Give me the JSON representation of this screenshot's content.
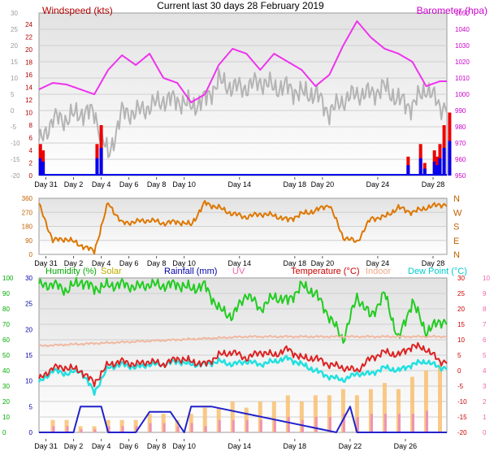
{
  "title": "Current last 30 days 28 February 2019",
  "chart_data": [
    {
      "type": "line",
      "panel": "wind_baro",
      "legend": {
        "windspeed": "Windspeed (kts)",
        "barometer": "Barometer (hpa)"
      },
      "left_axis": {
        "ticks": [
          "30",
          "25",
          "20",
          "15",
          "10",
          "5",
          "0",
          "-5",
          "-10",
          "-15",
          "-20"
        ],
        "range": [
          -20,
          30
        ]
      },
      "wind_axis_overlay": {
        "ticks": [
          "24",
          "22",
          "20",
          "18",
          "16",
          "14",
          "12",
          "10",
          "8",
          "6",
          "4",
          "2",
          "0"
        ],
        "range": [
          0,
          24
        ]
      },
      "right_axis": {
        "ticks": [
          "1050",
          "1040",
          "1030",
          "1020",
          "1010",
          "1000",
          "990",
          "980",
          "970",
          "960",
          "950"
        ],
        "range": [
          950,
          1050
        ]
      },
      "x_labels": [
        "Day 31",
        "Day 2",
        "Day 4",
        "Day 6",
        "Day 8",
        "Day 10",
        "Day 14",
        "Day 18",
        "Day 20",
        "Day 24",
        "Day 28"
      ],
      "barometer": {
        "t": [
          0,
          1,
          2,
          3,
          4,
          5,
          6,
          7,
          8,
          9,
          10,
          11,
          12,
          13,
          14,
          15,
          16,
          17,
          18,
          19,
          20,
          21,
          22,
          23,
          24,
          25,
          26,
          27,
          28,
          29
        ],
        "hpa": [
          1003,
          1007,
          1006,
          1003,
          1000,
          1015,
          1024,
          1018,
          1025,
          1010,
          1007,
          995,
          1000,
          1018,
          1028,
          1025,
          1015,
          1025,
          1020,
          1015,
          1005,
          1012,
          1030,
          1045,
          1035,
          1028,
          1025,
          1020,
          1005,
          1008
        ]
      },
      "windspeed": {
        "t": [
          0,
          1,
          2,
          3,
          4,
          5,
          6,
          7,
          8,
          9,
          10,
          11,
          12,
          13,
          14,
          15,
          16,
          17,
          18,
          19,
          20,
          21,
          22,
          23,
          24,
          25,
          26,
          27,
          28,
          29
        ],
        "kts": [
          5,
          9,
          9,
          10,
          10,
          3,
          10,
          10,
          11,
          12,
          12,
          11,
          12,
          15,
          14,
          14,
          15,
          14,
          14,
          13,
          13,
          10,
          12,
          13,
          13,
          14,
          12,
          11,
          14,
          11
        ]
      },
      "gust_bars": {
        "t": [
          0.1,
          0.3,
          4.2,
          4.5,
          26.7,
          27.6,
          27.9,
          28.6,
          28.8,
          29.0,
          29.3,
          29.7
        ],
        "kts": [
          5,
          4,
          5,
          8,
          3,
          5,
          2,
          4,
          3,
          5,
          8,
          10
        ]
      }
    },
    {
      "type": "scatter",
      "panel": "wind_direction",
      "left_axis": {
        "ticks": [
          "360",
          "270",
          "180",
          "90",
          "0"
        ],
        "range": [
          0,
          360
        ]
      },
      "right_labels": [
        "N",
        "W",
        "S",
        "E",
        "N"
      ],
      "x_labels": [
        "Day 31",
        "Day 2",
        "Day 4",
        "Day 6",
        "Day 8",
        "Day 10",
        "Day 14",
        "Day 18",
        "Day 20",
        "Day 24",
        "Day 28"
      ],
      "direction": {
        "t": [
          0,
          1,
          2,
          3,
          4,
          5,
          6,
          7,
          8,
          9,
          10,
          11,
          12,
          13,
          14,
          15,
          16,
          17,
          18,
          19,
          20,
          21,
          22,
          23,
          24,
          25,
          26,
          27,
          28,
          29
        ],
        "deg": [
          320,
          90,
          100,
          60,
          20,
          330,
          200,
          210,
          220,
          200,
          210,
          190,
          330,
          300,
          260,
          240,
          260,
          250,
          220,
          260,
          280,
          320,
          110,
          80,
          230,
          240,
          300,
          270,
          300,
          320
        ]
      }
    },
    {
      "type": "line",
      "panel": "temp_hum_rain",
      "legend": {
        "humidity": "Humidity (%)",
        "solar": "Solar",
        "rainfall": "Rainfall (mm)",
        "uv": "UV",
        "temperature": "Temperature (°C)",
        "indoor": "Indoor",
        "dewpoint": "Dew Point (°C)"
      },
      "humidity_axis": {
        "ticks": [
          "100",
          "90",
          "80",
          "70",
          "60",
          "50",
          "40",
          "30",
          "20",
          "10",
          "0"
        ],
        "range": [
          0,
          100
        ]
      },
      "rain_axis": {
        "ticks": [
          "30",
          "25",
          "20",
          "15",
          "10",
          "5",
          "0"
        ],
        "range": [
          0,
          30
        ]
      },
      "temperature_axis": {
        "ticks": [
          "30",
          "25",
          "20",
          "15",
          "10",
          "5",
          "0",
          "-5",
          "-10",
          "-15",
          "-20"
        ],
        "range": [
          -20,
          30
        ]
      },
      "uv_axis": {
        "ticks": [
          "10",
          "9",
          "8",
          "7",
          "6",
          "5",
          "4",
          "3",
          "2",
          "1",
          "0"
        ],
        "range": [
          0,
          10
        ]
      },
      "x_labels": [
        "Day 31",
        "Day 2",
        "Day 4",
        "Day 6",
        "Day 8",
        "Day 10",
        "Day 14",
        "Day 18",
        "Day 22",
        "Day 26"
      ],
      "humidity": {
        "t": [
          0,
          1,
          2,
          3,
          4,
          5,
          6,
          7,
          8,
          9,
          10,
          11,
          12,
          13,
          14,
          15,
          16,
          17,
          18,
          19,
          20,
          21,
          22,
          23,
          24,
          25,
          26,
          27,
          28,
          29
        ],
        "pct": [
          95,
          96,
          92,
          98,
          93,
          95,
          96,
          94,
          96,
          95,
          96,
          93,
          95,
          80,
          75,
          90,
          80,
          88,
          85,
          95,
          90,
          75,
          60,
          88,
          75,
          90,
          60,
          85,
          65,
          72
        ]
      },
      "temperature": {
        "t": [
          0,
          1,
          2,
          3,
          4,
          5,
          6,
          7,
          8,
          9,
          10,
          11,
          12,
          13,
          14,
          15,
          16,
          17,
          18,
          19,
          20,
          21,
          22,
          23,
          24,
          25,
          26,
          27,
          28,
          29
        ],
        "c": [
          -3,
          1,
          1,
          0,
          -4,
          2,
          3,
          2,
          3,
          2,
          4,
          3,
          2,
          5,
          6,
          4,
          6,
          5,
          7,
          4,
          4,
          2,
          1,
          0,
          4,
          6,
          5,
          8,
          7,
          3
        ]
      },
      "dewpoint": {
        "t": [
          0,
          1,
          2,
          3,
          4,
          5,
          6,
          7,
          8,
          9,
          10,
          11,
          12,
          13,
          14,
          15,
          16,
          17,
          18,
          19,
          20,
          21,
          22,
          23,
          24,
          25,
          26,
          27,
          28,
          29
        ],
        "c": [
          -4,
          0,
          -1,
          0,
          -7,
          1,
          2,
          1,
          2,
          2,
          3,
          2,
          2,
          3,
          2,
          3,
          2,
          3,
          4,
          2,
          0,
          -2,
          -3,
          -1,
          -1,
          1,
          0,
          2,
          3,
          1
        ]
      },
      "indoor": {
        "t": [
          0,
          5,
          10,
          15,
          20,
          25,
          29
        ],
        "c": [
          8,
          9,
          10,
          11,
          11,
          11,
          11
        ]
      },
      "rainfall": {
        "t": [
          0,
          2.5,
          3.0,
          4.5,
          5.0,
          7.0,
          8.0,
          9.5,
          10.5,
          11.0,
          12.5,
          21.5,
          22.5,
          23.0
        ],
        "mm": [
          0,
          0,
          5,
          5,
          0,
          0,
          4,
          4,
          0,
          5,
          5,
          0,
          5,
          0
        ]
      },
      "solar_peaks": {
        "t": [
          1,
          2,
          3,
          4,
          5,
          6,
          7,
          8,
          9,
          10,
          11,
          12,
          13,
          14,
          15,
          16,
          17,
          18,
          19,
          20,
          21,
          22,
          23,
          24,
          25,
          26,
          27,
          28,
          29
        ],
        "val": [
          2,
          2,
          1,
          1,
          2,
          2,
          2,
          3,
          3,
          2,
          3,
          4,
          4,
          5,
          4,
          5,
          5,
          6,
          5,
          6,
          6,
          7,
          6,
          7,
          8,
          7,
          9,
          10,
          11
        ]
      },
      "uv_peaks": {
        "t": [
          1,
          2,
          3,
          4,
          5,
          6,
          7,
          8,
          9,
          10,
          11,
          12,
          13,
          14,
          15,
          16,
          17,
          18,
          19,
          20,
          21,
          22,
          23,
          24,
          25,
          26,
          27,
          28
        ],
        "val": [
          1,
          1,
          0.5,
          0.5,
          1,
          1,
          1,
          1.5,
          1.5,
          1,
          1.5,
          1,
          2,
          2,
          2,
          2,
          2,
          2.5,
          2,
          2.5,
          2.5,
          3,
          2.5,
          3,
          3,
          3,
          3,
          3.5
        ]
      }
    }
  ]
}
